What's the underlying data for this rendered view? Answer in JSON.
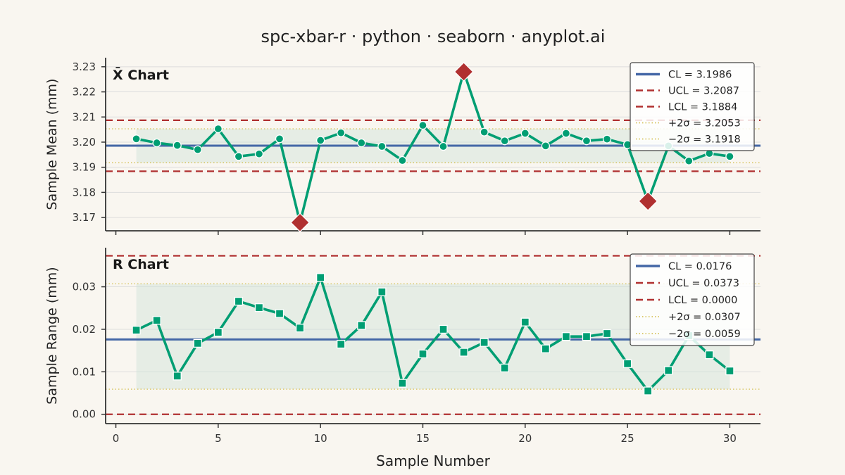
{
  "title": "spc-xbar-r · python · seaborn · anyplot.ai",
  "colors": {
    "background": "#f9f6f0",
    "series": "#009e73",
    "cl": "#4467a6",
    "limits": "#b03030",
    "sigma": "#d6c35e",
    "zone": "#cfe3d6",
    "out_of_control": "#b03030",
    "axis": "#333333",
    "grid": "#dddddd"
  },
  "chart_data": [
    {
      "type": "line",
      "panel_title": "X̄ Chart",
      "xlabel": "",
      "ylabel": "Sample Mean (mm)",
      "xlim": [
        -0.5,
        31.5
      ],
      "ylim": [
        3.1647,
        3.2336
      ],
      "xticks": [
        0,
        5,
        10,
        15,
        20,
        25,
        30
      ],
      "xtick_labels": [
        "",
        "",
        "",
        "",
        "",
        "",
        ""
      ],
      "yticks": [
        3.17,
        3.18,
        3.19,
        3.2,
        3.21,
        3.22,
        3.23
      ],
      "ytick_labels": [
        "3.17",
        "3.18",
        "3.19",
        "3.20",
        "3.21",
        "3.22",
        "3.23"
      ],
      "grid": true,
      "legend_position": "top-right",
      "x": [
        1,
        2,
        3,
        4,
        5,
        6,
        7,
        8,
        9,
        10,
        11,
        12,
        13,
        14,
        15,
        16,
        17,
        18,
        19,
        20,
        21,
        22,
        23,
        24,
        25,
        26,
        27,
        28,
        29,
        30
      ],
      "values": [
        3.2013,
        3.1997,
        3.1987,
        3.197,
        3.2053,
        3.1943,
        3.1953,
        3.2013,
        3.168,
        3.2007,
        3.2037,
        3.1997,
        3.1983,
        3.1927,
        3.2067,
        3.1983,
        3.228,
        3.204,
        3.2005,
        3.2035,
        3.1985,
        3.2035,
        3.2005,
        3.2012,
        3.199,
        3.1765,
        3.1985,
        3.1925,
        3.1955,
        3.1943
      ],
      "out_of_control": [
        9,
        17,
        26
      ],
      "marker": "circle",
      "lines": [
        {
          "key": "cl",
          "label": "CL = 3.1986",
          "value": 3.1986,
          "style": "solid"
        },
        {
          "key": "ucl",
          "label": "UCL = 3.2087",
          "value": 3.2087,
          "style": "dashed"
        },
        {
          "key": "lcl",
          "label": "LCL = 3.1884",
          "value": 3.1884,
          "style": "dashed"
        },
        {
          "key": "p2s",
          "label": "+2σ = 3.2053",
          "value": 3.2053,
          "style": "dotted"
        },
        {
          "key": "m2s",
          "label": "−2σ = 3.1918",
          "value": 3.1918,
          "style": "dotted"
        }
      ]
    },
    {
      "type": "line",
      "panel_title": "R Chart",
      "xlabel": "Sample Number",
      "ylabel": "Sample Range (mm)",
      "xlim": [
        -0.5,
        31.5
      ],
      "ylim": [
        -0.0022,
        0.0392
      ],
      "xticks": [
        0,
        5,
        10,
        15,
        20,
        25,
        30
      ],
      "xtick_labels": [
        "0",
        "5",
        "10",
        "15",
        "20",
        "25",
        "30"
      ],
      "yticks": [
        0.0,
        0.01,
        0.02,
        0.03
      ],
      "ytick_labels": [
        "0.00",
        "0.01",
        "0.02",
        "0.03"
      ],
      "grid": true,
      "legend_position": "top-right",
      "x": [
        1,
        2,
        3,
        4,
        5,
        6,
        7,
        8,
        9,
        10,
        11,
        12,
        13,
        14,
        15,
        16,
        17,
        18,
        19,
        20,
        21,
        22,
        23,
        24,
        25,
        26,
        27,
        28,
        29,
        30
      ],
      "values": [
        0.0198,
        0.0221,
        0.009,
        0.0167,
        0.0193,
        0.0266,
        0.0251,
        0.0237,
        0.0203,
        0.0322,
        0.0165,
        0.0209,
        0.0288,
        0.0073,
        0.0142,
        0.02,
        0.0146,
        0.0169,
        0.0109,
        0.0217,
        0.0154,
        0.0183,
        0.0183,
        0.019,
        0.0119,
        0.0055,
        0.0103,
        0.0185,
        0.014,
        0.0102
      ],
      "out_of_control": [],
      "marker": "square",
      "lines": [
        {
          "key": "cl",
          "label": "CL = 0.0176",
          "value": 0.0176,
          "style": "solid"
        },
        {
          "key": "ucl",
          "label": "UCL = 0.0373",
          "value": 0.0373,
          "style": "dashed"
        },
        {
          "key": "lcl",
          "label": "LCL = 0.0000",
          "value": 0.0,
          "style": "dashed"
        },
        {
          "key": "p2s",
          "label": "+2σ = 0.0307",
          "value": 0.0307,
          "style": "dotted"
        },
        {
          "key": "m2s",
          "label": "−2σ = 0.0059",
          "value": 0.0059,
          "style": "dotted"
        }
      ]
    }
  ]
}
